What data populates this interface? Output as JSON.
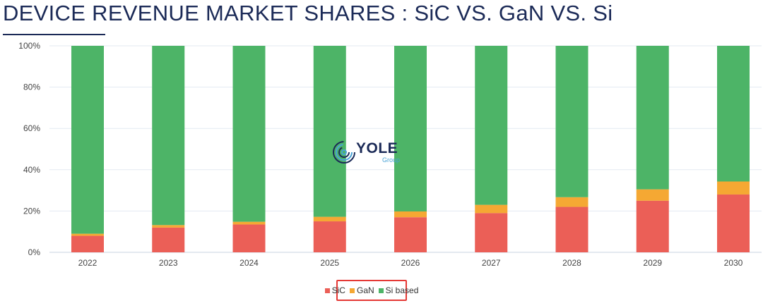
{
  "header": {
    "title": "DEVICE REVENUE MARKET SHARES : SiC VS. GaN VS. Si"
  },
  "logo": {
    "name": "YOLE",
    "sub": "Group"
  },
  "chart_data": {
    "type": "bar",
    "stacked": true,
    "categories": [
      "2022",
      "2023",
      "2024",
      "2025",
      "2026",
      "2027",
      "2028",
      "2029",
      "2030"
    ],
    "series": [
      {
        "name": "SiC",
        "color": "#eb5f57",
        "values": [
          8,
          12,
          13.5,
          15,
          17,
          19,
          22,
          25,
          28
        ]
      },
      {
        "name": "GaN",
        "color": "#f5a833",
        "values": [
          1,
          1.2,
          1.3,
          2.2,
          2.8,
          4,
          4.7,
          5.5,
          6.3
        ]
      },
      {
        "name": "Si based",
        "color": "#4db467",
        "values": [
          91,
          86.8,
          85.2,
          82.8,
          80.2,
          77,
          73.3,
          69.5,
          65.7
        ]
      }
    ],
    "yticks": [
      "0%",
      "20%",
      "40%",
      "60%",
      "80%",
      "100%"
    ],
    "ylim": [
      0,
      100
    ],
    "grid": true,
    "legend": "bottom-center"
  }
}
